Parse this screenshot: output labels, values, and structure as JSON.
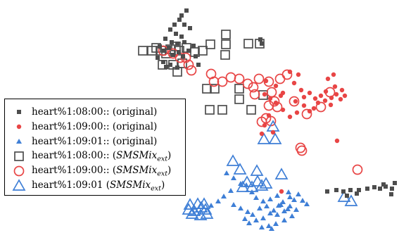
{
  "chart_data": {
    "type": "scatter",
    "title": "",
    "xlabel": "",
    "ylabel": "",
    "grid": false,
    "axes_visible": false,
    "legend_placement": "left",
    "series": [
      {
        "name": "heart%1:08:00:: (original)",
        "marker": "square-filled",
        "color": "#4d4d4d",
        "points": [
          [
            265,
            15
          ],
          [
            258,
            22
          ],
          [
            255,
            28
          ],
          [
            248,
            35
          ],
          [
            262,
            35
          ],
          [
            242,
            42
          ],
          [
            270,
            40
          ],
          [
            250,
            48
          ],
          [
            258,
            52
          ],
          [
            235,
            55
          ],
          [
            244,
            60
          ],
          [
            240,
            68
          ],
          [
            252,
            62
          ],
          [
            262,
            60
          ],
          [
            232,
            72
          ],
          [
            246,
            78
          ],
          [
            254,
            74
          ],
          [
            260,
            80
          ],
          [
            224,
            82
          ],
          [
            232,
            88
          ],
          [
            242,
            92
          ],
          [
            236,
            95
          ],
          [
            252,
            96
          ],
          [
            268,
            72
          ],
          [
            275,
            65
          ],
          [
            278,
            80
          ],
          [
            282,
            92
          ],
          [
            227,
            66
          ],
          [
            372,
            62
          ],
          [
            370,
            56
          ],
          [
            465,
            272
          ],
          [
            478,
            270
          ],
          [
            488,
            272
          ],
          [
            498,
            270
          ],
          [
            510,
            270
          ],
          [
            522,
            268
          ],
          [
            532,
            266
          ],
          [
            540,
            268
          ],
          [
            548,
            265
          ],
          [
            557,
            268
          ],
          [
            556,
            276
          ],
          [
            545,
            262
          ],
          [
            561,
            260
          ],
          [
            507,
            275
          ],
          [
            493,
            278
          ]
        ]
      },
      {
        "name": "heart%1:09:00:: (original)",
        "marker": "circle-filled",
        "color": "#e84545",
        "points": [
          [
            378,
            115
          ],
          [
            392,
            122
          ],
          [
            402,
            132
          ],
          [
            418,
            118
          ],
          [
            428,
            128
          ],
          [
            432,
            138
          ],
          [
            440,
            132
          ],
          [
            448,
            140
          ],
          [
            456,
            136
          ],
          [
            463,
            130
          ],
          [
            471,
            139
          ],
          [
            478,
            134
          ],
          [
            486,
            128
          ],
          [
            476,
            123
          ],
          [
            466,
            112
          ],
          [
            474,
            106
          ],
          [
            424,
            106
          ],
          [
            412,
            102
          ],
          [
            420,
            144
          ],
          [
            432,
            150
          ],
          [
            440,
            158
          ],
          [
            422,
            160
          ],
          [
            412,
            166
          ],
          [
            452,
            146
          ],
          [
            446,
            154
          ],
          [
            462,
            143
          ],
          [
            470,
            149
          ],
          [
            484,
            141
          ],
          [
            490,
            136
          ],
          [
            399,
            136
          ],
          [
            384,
            140
          ],
          [
            376,
            134
          ],
          [
            392,
            146
          ],
          [
            402,
            156
          ],
          [
            382,
            164
          ],
          [
            376,
            178
          ],
          [
            372,
            190
          ],
          [
            388,
            188
          ],
          [
            212,
            168
          ],
          [
            206,
            180
          ],
          [
            188,
            174
          ],
          [
            226,
            182
          ],
          [
            235,
            160
          ],
          [
            400,
            272
          ],
          [
            479,
            200
          ]
        ]
      },
      {
        "name": "heart%1:09:01:: (original)",
        "marker": "triangle-filled",
        "color": "#3f7fd6",
        "points": [
          [
            322,
            246
          ],
          [
            332,
            253
          ],
          [
            342,
            261
          ],
          [
            350,
            263
          ],
          [
            328,
            271
          ],
          [
            358,
            273
          ],
          [
            364,
            281
          ],
          [
            374,
            286
          ],
          [
            384,
            283
          ],
          [
            394,
            278
          ],
          [
            402,
            287
          ],
          [
            412,
            293
          ],
          [
            418,
            284
          ],
          [
            410,
            273
          ],
          [
            424,
            276
          ],
          [
            430,
            285
          ],
          [
            436,
            290
          ],
          [
            404,
            300
          ],
          [
            394,
            305
          ],
          [
            384,
            303
          ],
          [
            374,
            310
          ],
          [
            364,
            313
          ],
          [
            354,
            317
          ],
          [
            348,
            311
          ],
          [
            359,
            305
          ],
          [
            369,
            296
          ],
          [
            379,
            293
          ],
          [
            389,
            299
          ],
          [
            399,
            291
          ],
          [
            409,
            297
          ],
          [
            415,
            307
          ],
          [
            404,
            313
          ],
          [
            421,
            298
          ],
          [
            352,
            301
          ],
          [
            342,
            296
          ],
          [
            332,
            291
          ],
          [
            318,
            279
          ],
          [
            310,
            286
          ],
          [
            300,
            292
          ],
          [
            382,
            321
          ],
          [
            372,
            323
          ],
          [
            392,
            318
          ],
          [
            412,
            280
          ],
          [
            396,
            292
          ],
          [
            386,
            325
          ]
        ]
      },
      {
        "name": "heart%1:08:00:: (SMSMix_ext)",
        "marker": "square-open",
        "color": "#4d4d4d",
        "points": [
          [
            203,
            72
          ],
          [
            216,
            72
          ],
          [
            229,
            72
          ],
          [
            242,
            70
          ],
          [
            255,
            72
          ],
          [
            265,
            68
          ],
          [
            277,
            74
          ],
          [
            288,
            72
          ],
          [
            299,
            63
          ],
          [
            321,
            49
          ],
          [
            321,
            63
          ],
          [
            353,
            62
          ],
          [
            369,
            62
          ],
          [
            231,
            92
          ],
          [
            246,
            92
          ],
          [
            252,
            102
          ],
          [
            259,
            90
          ],
          [
            294,
            126
          ],
          [
            305,
            126
          ],
          [
            320,
            78
          ],
          [
            340,
            126
          ],
          [
            298,
            156
          ],
          [
            316,
            156
          ],
          [
            357,
            156
          ],
          [
            374,
            135
          ],
          [
            340,
            141
          ],
          [
            222,
            68
          ],
          [
            236,
            76
          ],
          [
            250,
            66
          ]
        ]
      },
      {
        "name": "heart%1:09:00:: (SMSMix_ext)",
        "marker": "circle-open",
        "color": "#e84545",
        "points": [
          [
            232,
            72
          ],
          [
            246,
            76
          ],
          [
            256,
            82
          ],
          [
            264,
            82
          ],
          [
            268,
            92
          ],
          [
            272,
            100
          ],
          [
            300,
            105
          ],
          [
            304,
            116
          ],
          [
            316,
            116
          ],
          [
            328,
            110
          ],
          [
            340,
            112
          ],
          [
            352,
            119
          ],
          [
            360,
            124
          ],
          [
            368,
            112
          ],
          [
            382,
            116
          ],
          [
            398,
            112
          ],
          [
            408,
            106
          ],
          [
            362,
            134
          ],
          [
            382,
            150
          ],
          [
            390,
            144
          ],
          [
            378,
            168
          ],
          [
            385,
            172
          ],
          [
            372,
            173
          ],
          [
            386,
            131
          ],
          [
            418,
            144
          ],
          [
            436,
            162
          ],
          [
            469,
            131
          ],
          [
            456,
            152
          ],
          [
            394,
            152
          ],
          [
            226,
            184
          ],
          [
            216,
            200
          ],
          [
            183,
            188
          ],
          [
            427,
            210
          ],
          [
            429,
            214
          ],
          [
            508,
            241
          ]
        ]
      },
      {
        "name": "heart%1:09:01 (SMSMix_ext)",
        "marker": "triangle-open",
        "color": "#3f7fd6",
        "points": [
          [
            388,
            180
          ],
          [
            375,
            198
          ],
          [
            391,
            198
          ],
          [
            331,
            229
          ],
          [
            341,
            241
          ],
          [
            351,
            259
          ],
          [
            358,
            266
          ],
          [
            366,
            258
          ],
          [
            372,
            264
          ],
          [
            378,
            261
          ],
          [
            345,
            266
          ],
          [
            365,
            243
          ],
          [
            400,
            248
          ],
          [
            268,
            298
          ],
          [
            276,
            300
          ],
          [
            286,
            295
          ],
          [
            292,
            298
          ],
          [
            281,
            290
          ],
          [
            273,
            304
          ],
          [
            285,
            306
          ],
          [
            294,
            304
          ],
          [
            489,
            280
          ],
          [
            499,
            286
          ],
          [
            270,
            291
          ],
          [
            290,
            290
          ]
        ]
      }
    ],
    "legend": [
      {
        "text": "heart%1:08:00:: (original)",
        "marker": "square-filled",
        "color": "#4d4d4d"
      },
      {
        "text": "heart%1:09:00:: (original)",
        "marker": "circle-filled",
        "color": "#e84545"
      },
      {
        "text": "heart%1:09:01:: (original)",
        "marker": "triangle-filled",
        "color": "#3f7fd6"
      },
      {
        "text": "heart%1:08:00:: (",
        "math": "SMSMix",
        "sub": "ext",
        "close": ")",
        "marker": "square-open",
        "color": "#4d4d4d"
      },
      {
        "text": "heart%1:09:00:: (",
        "math": "SMSMix",
        "sub": "ext",
        "close": ")",
        "marker": "circle-open",
        "color": "#e84545"
      },
      {
        "text": "heart%1:09:01 (",
        "math": "SMSMix",
        "sub": "ext",
        "close": ")",
        "marker": "triangle-open",
        "color": "#3f7fd6"
      }
    ]
  }
}
